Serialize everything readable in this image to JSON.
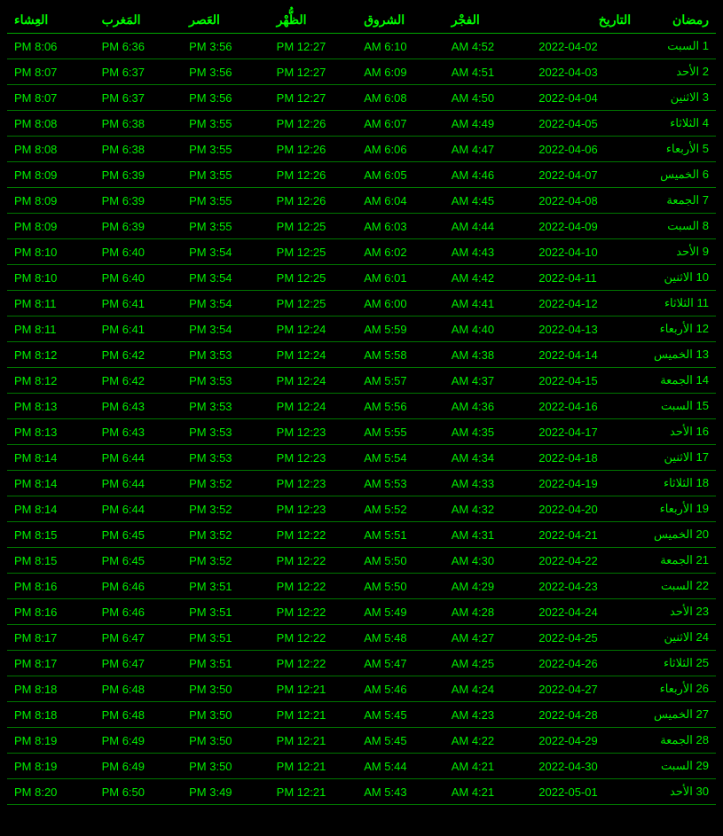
{
  "table": {
    "background_color": "#000000",
    "text_color": "#00ee00",
    "header_color": "#00ff00",
    "border_color": "#007700",
    "columns": [
      "رمضان",
      "التاريخ",
      "الفجْر",
      "الشروق",
      "الظُّهْر",
      "العَصر",
      "المَغرب",
      "العِشاء"
    ],
    "rows": [
      [
        "1 السبت",
        "2022-04-02",
        "AM 4:52",
        "AM 6:10",
        "PM 12:27",
        "PM 3:56",
        "PM 6:36",
        "PM 8:06"
      ],
      [
        "2 الأحد",
        "2022-04-03",
        "AM 4:51",
        "AM 6:09",
        "PM 12:27",
        "PM 3:56",
        "PM 6:37",
        "PM 8:07"
      ],
      [
        "3 الاثنين",
        "2022-04-04",
        "AM 4:50",
        "AM 6:08",
        "PM 12:27",
        "PM 3:56",
        "PM 6:37",
        "PM 8:07"
      ],
      [
        "4 الثلاثاء",
        "2022-04-05",
        "AM 4:49",
        "AM 6:07",
        "PM 12:26",
        "PM 3:55",
        "PM 6:38",
        "PM 8:08"
      ],
      [
        "5 الأربعاء",
        "2022-04-06",
        "AM 4:47",
        "AM 6:06",
        "PM 12:26",
        "PM 3:55",
        "PM 6:38",
        "PM 8:08"
      ],
      [
        "6 الخميس",
        "2022-04-07",
        "AM 4:46",
        "AM 6:05",
        "PM 12:26",
        "PM 3:55",
        "PM 6:39",
        "PM 8:09"
      ],
      [
        "7 الجمعة",
        "2022-04-08",
        "AM 4:45",
        "AM 6:04",
        "PM 12:26",
        "PM 3:55",
        "PM 6:39",
        "PM 8:09"
      ],
      [
        "8 السبت",
        "2022-04-09",
        "AM 4:44",
        "AM 6:03",
        "PM 12:25",
        "PM 3:55",
        "PM 6:39",
        "PM 8:09"
      ],
      [
        "9 الأحد",
        "2022-04-10",
        "AM 4:43",
        "AM 6:02",
        "PM 12:25",
        "PM 3:54",
        "PM 6:40",
        "PM 8:10"
      ],
      [
        "10 الاثنين",
        "2022-04-11",
        "AM 4:42",
        "AM 6:01",
        "PM 12:25",
        "PM 3:54",
        "PM 6:40",
        "PM 8:10"
      ],
      [
        "11 الثلاثاء",
        "2022-04-12",
        "AM 4:41",
        "AM 6:00",
        "PM 12:25",
        "PM 3:54",
        "PM 6:41",
        "PM 8:11"
      ],
      [
        "12 الأربعاء",
        "2022-04-13",
        "AM 4:40",
        "AM 5:59",
        "PM 12:24",
        "PM 3:54",
        "PM 6:41",
        "PM 8:11"
      ],
      [
        "13 الخميس",
        "2022-04-14",
        "AM 4:38",
        "AM 5:58",
        "PM 12:24",
        "PM 3:53",
        "PM 6:42",
        "PM 8:12"
      ],
      [
        "14 الجمعة",
        "2022-04-15",
        "AM 4:37",
        "AM 5:57",
        "PM 12:24",
        "PM 3:53",
        "PM 6:42",
        "PM 8:12"
      ],
      [
        "15 السبت",
        "2022-04-16",
        "AM 4:36",
        "AM 5:56",
        "PM 12:24",
        "PM 3:53",
        "PM 6:43",
        "PM 8:13"
      ],
      [
        "16 الأحد",
        "2022-04-17",
        "AM 4:35",
        "AM 5:55",
        "PM 12:23",
        "PM 3:53",
        "PM 6:43",
        "PM 8:13"
      ],
      [
        "17 الاثنين",
        "2022-04-18",
        "AM 4:34",
        "AM 5:54",
        "PM 12:23",
        "PM 3:53",
        "PM 6:44",
        "PM 8:14"
      ],
      [
        "18 الثلاثاء",
        "2022-04-19",
        "AM 4:33",
        "AM 5:53",
        "PM 12:23",
        "PM 3:52",
        "PM 6:44",
        "PM 8:14"
      ],
      [
        "19 الأربعاء",
        "2022-04-20",
        "AM 4:32",
        "AM 5:52",
        "PM 12:23",
        "PM 3:52",
        "PM 6:44",
        "PM 8:14"
      ],
      [
        "20 الخميس",
        "2022-04-21",
        "AM 4:31",
        "AM 5:51",
        "PM 12:22",
        "PM 3:52",
        "PM 6:45",
        "PM 8:15"
      ],
      [
        "21 الجمعة",
        "2022-04-22",
        "AM 4:30",
        "AM 5:50",
        "PM 12:22",
        "PM 3:52",
        "PM 6:45",
        "PM 8:15"
      ],
      [
        "22 السبت",
        "2022-04-23",
        "AM 4:29",
        "AM 5:50",
        "PM 12:22",
        "PM 3:51",
        "PM 6:46",
        "PM 8:16"
      ],
      [
        "23 الأحد",
        "2022-04-24",
        "AM 4:28",
        "AM 5:49",
        "PM 12:22",
        "PM 3:51",
        "PM 6:46",
        "PM 8:16"
      ],
      [
        "24 الاثنين",
        "2022-04-25",
        "AM 4:27",
        "AM 5:48",
        "PM 12:22",
        "PM 3:51",
        "PM 6:47",
        "PM 8:17"
      ],
      [
        "25 الثلاثاء",
        "2022-04-26",
        "AM 4:25",
        "AM 5:47",
        "PM 12:22",
        "PM 3:51",
        "PM 6:47",
        "PM 8:17"
      ],
      [
        "26 الأربعاء",
        "2022-04-27",
        "AM 4:24",
        "AM 5:46",
        "PM 12:21",
        "PM 3:50",
        "PM 6:48",
        "PM 8:18"
      ],
      [
        "27 الخميس",
        "2022-04-28",
        "AM 4:23",
        "AM 5:45",
        "PM 12:21",
        "PM 3:50",
        "PM 6:48",
        "PM 8:18"
      ],
      [
        "28 الجمعة",
        "2022-04-29",
        "AM 4:22",
        "AM 5:45",
        "PM 12:21",
        "PM 3:50",
        "PM 6:49",
        "PM 8:19"
      ],
      [
        "29 السبت",
        "2022-04-30",
        "AM 4:21",
        "AM 5:44",
        "PM 12:21",
        "PM 3:50",
        "PM 6:49",
        "PM 8:19"
      ],
      [
        "30 الأحد",
        "2022-05-01",
        "AM 4:21",
        "AM 5:43",
        "PM 12:21",
        "PM 3:49",
        "PM 6:50",
        "PM 8:20"
      ]
    ]
  }
}
